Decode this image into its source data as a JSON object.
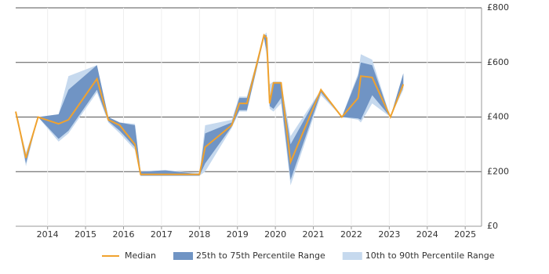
{
  "chart_data": {
    "type": "line",
    "x": [
      2013.16,
      2013.43,
      2013.75,
      2014.29,
      2014.55,
      2015.3,
      2015.6,
      2015.9,
      2016.3,
      2016.45,
      2017.1,
      2018.0,
      2018.15,
      2018.85,
      2019.05,
      2019.25,
      2019.7,
      2019.77,
      2019.85,
      2019.95,
      2020.15,
      2020.4,
      2021.2,
      2021.75,
      2022.18,
      2022.25,
      2022.55,
      2023.03,
      2023.37
    ],
    "series": [
      {
        "name": "10th to 90th Percentile Range",
        "color": "#c6d9ee",
        "low": [
          420,
          220,
          400,
          310,
          340,
          490,
          380,
          340,
          280,
          185,
          185,
          185,
          200,
          360,
          420,
          420,
          690,
          620,
          430,
          420,
          450,
          150,
          480,
          400,
          390,
          380,
          450,
          400,
          500
        ],
        "high": [
          420,
          270,
          400,
          410,
          550,
          590,
          400,
          380,
          375,
          200,
          205,
          195,
          370,
          390,
          475,
          475,
          700,
          710,
          520,
          530,
          530,
          330,
          500,
          400,
          560,
          630,
          610,
          400,
          560
        ]
      },
      {
        "name": "25th to 75th Percentile Range",
        "color": "#7094c4",
        "low": [
          420,
          230,
          400,
          320,
          350,
          500,
          385,
          350,
          290,
          185,
          185,
          185,
          230,
          365,
          425,
          425,
          690,
          640,
          440,
          430,
          470,
          170,
          490,
          400,
          395,
          390,
          480,
          400,
          510
        ],
        "high": [
          420,
          260,
          400,
          410,
          500,
          590,
          400,
          380,
          370,
          200,
          205,
          190,
          340,
          380,
          470,
          470,
          700,
          700,
          470,
          525,
          525,
          300,
          500,
          400,
          550,
          600,
          590,
          400,
          560
        ]
      },
      {
        "name": "Median",
        "color": "#f0a22e",
        "values": [
          420,
          250,
          400,
          375,
          390,
          540,
          390,
          370,
          300,
          190,
          190,
          190,
          290,
          370,
          450,
          450,
          700,
          690,
          450,
          525,
          525,
          235,
          500,
          400,
          470,
          550,
          545,
          400,
          520
        ]
      }
    ],
    "xlim": [
      2013.16,
      2025.43
    ],
    "ylim": [
      0,
      800
    ],
    "xticks": [
      2014,
      2015,
      2016,
      2017,
      2018,
      2019,
      2020,
      2021,
      2022,
      2023,
      2024,
      2025
    ],
    "yticks": [
      {
        "value": 0,
        "label": "£0"
      },
      {
        "value": 200,
        "label": "£200"
      },
      {
        "value": 400,
        "label": "£400"
      },
      {
        "value": 600,
        "label": "£600"
      },
      {
        "value": 800,
        "label": "£800"
      }
    ],
    "grid": true
  }
}
